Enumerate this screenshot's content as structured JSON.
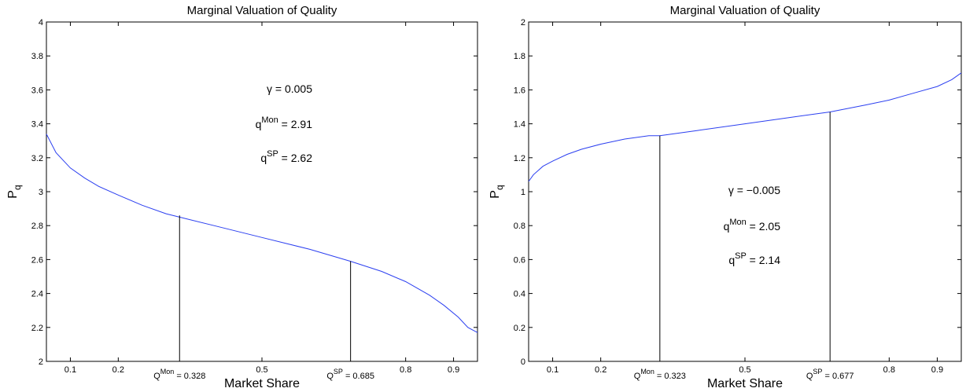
{
  "chart_data": [
    {
      "type": "line",
      "title": "Marginal Valuation of Quality",
      "xlabel": "Market Share",
      "ylabel": "P",
      "ylabel_sub": "q",
      "xlim": [
        0.05,
        0.95
      ],
      "ylim": [
        2,
        4
      ],
      "xticks": [
        {
          "v": 0.1,
          "label": "0.1"
        },
        {
          "v": 0.2,
          "label": "0.2"
        },
        {
          "v": 0.5,
          "label": "0.5"
        },
        {
          "v": 0.8,
          "label": "0.8"
        },
        {
          "v": 0.9,
          "label": "0.9"
        }
      ],
      "yticks": [
        {
          "v": 2,
          "label": "2"
        },
        {
          "v": 2.2,
          "label": "2.2"
        },
        {
          "v": 2.4,
          "label": "2.4"
        },
        {
          "v": 2.6,
          "label": "2.6"
        },
        {
          "v": 2.8,
          "label": "2.8"
        },
        {
          "v": 3,
          "label": "3"
        },
        {
          "v": 3.2,
          "label": "3.2"
        },
        {
          "v": 3.4,
          "label": "3.4"
        },
        {
          "v": 3.6,
          "label": "3.6"
        },
        {
          "v": 3.8,
          "label": "3.8"
        },
        {
          "v": 4,
          "label": "4"
        }
      ],
      "grid": false,
      "series": [
        {
          "color": "#2b3ff0",
          "x": [
            0.05,
            0.07,
            0.1,
            0.13,
            0.16,
            0.2,
            0.25,
            0.3,
            0.328,
            0.4,
            0.5,
            0.6,
            0.685,
            0.75,
            0.8,
            0.85,
            0.88,
            0.91,
            0.93,
            0.95
          ],
          "y": [
            3.34,
            3.23,
            3.14,
            3.08,
            3.03,
            2.98,
            2.92,
            2.87,
            2.85,
            2.8,
            2.73,
            2.66,
            2.59,
            2.53,
            2.47,
            2.39,
            2.33,
            2.26,
            2.2,
            2.17
          ]
        }
      ],
      "markers": [
        {
          "x": 0.328,
          "y": 2.86,
          "label_base": "Q",
          "label_sup": "Mon",
          "label_rest": " = 0.328"
        },
        {
          "x": 0.685,
          "y": 2.59,
          "label_base": "Q",
          "label_sup": "SP",
          "label_rest": " = 0.685"
        }
      ],
      "annotations": {
        "gamma": "γ = 0.005",
        "qmon_base": "q",
        "qmon_sup": "Mon",
        "qmon_rest": " = 2.91",
        "qsp_base": "q",
        "qsp_sup": "SP",
        "qsp_rest": " = 2.62"
      }
    },
    {
      "type": "line",
      "title": "Marginal Valuation of Quality",
      "xlabel": "Market Share",
      "ylabel": "P",
      "ylabel_sub": "q",
      "xlim": [
        0.05,
        0.95
      ],
      "ylim": [
        0,
        2
      ],
      "xticks": [
        {
          "v": 0.1,
          "label": "0.1"
        },
        {
          "v": 0.2,
          "label": "0.2"
        },
        {
          "v": 0.5,
          "label": "0.5"
        },
        {
          "v": 0.8,
          "label": "0.8"
        },
        {
          "v": 0.9,
          "label": "0.9"
        }
      ],
      "yticks": [
        {
          "v": 0,
          "label": "0"
        },
        {
          "v": 0.2,
          "label": "0.2"
        },
        {
          "v": 0.4,
          "label": "0.4"
        },
        {
          "v": 0.6,
          "label": "0.6"
        },
        {
          "v": 0.8,
          "label": "0.8"
        },
        {
          "v": 1,
          "label": "1"
        },
        {
          "v": 1.2,
          "label": "1.2"
        },
        {
          "v": 1.4,
          "label": "1.4"
        },
        {
          "v": 1.6,
          "label": "1.6"
        },
        {
          "v": 1.8,
          "label": "1.8"
        },
        {
          "v": 2,
          "label": "2"
        }
      ],
      "grid": false,
      "series": [
        {
          "color": "#2b3ff0",
          "x": [
            0.05,
            0.06,
            0.08,
            0.1,
            0.13,
            0.16,
            0.2,
            0.25,
            0.3,
            0.323,
            0.4,
            0.5,
            0.6,
            0.677,
            0.75,
            0.8,
            0.85,
            0.9,
            0.93,
            0.95
          ],
          "y": [
            1.06,
            1.1,
            1.15,
            1.18,
            1.22,
            1.25,
            1.28,
            1.31,
            1.33,
            1.33,
            1.36,
            1.4,
            1.44,
            1.47,
            1.51,
            1.54,
            1.58,
            1.62,
            1.66,
            1.7
          ]
        }
      ],
      "markers": [
        {
          "x": 0.323,
          "y": 1.33,
          "label_base": "Q",
          "label_sup": "Mon",
          "label_rest": " = 0.323"
        },
        {
          "x": 0.677,
          "y": 1.47,
          "label_base": "Q",
          "label_sup": "SP",
          "label_rest": " = 0.677"
        }
      ],
      "annotations": {
        "gamma": "γ = −0.005",
        "qmon_base": "q",
        "qmon_sup": "Mon",
        "qmon_rest": " = 2.05",
        "qsp_base": "q",
        "qsp_sup": "SP",
        "qsp_rest": " = 2.14"
      }
    }
  ]
}
